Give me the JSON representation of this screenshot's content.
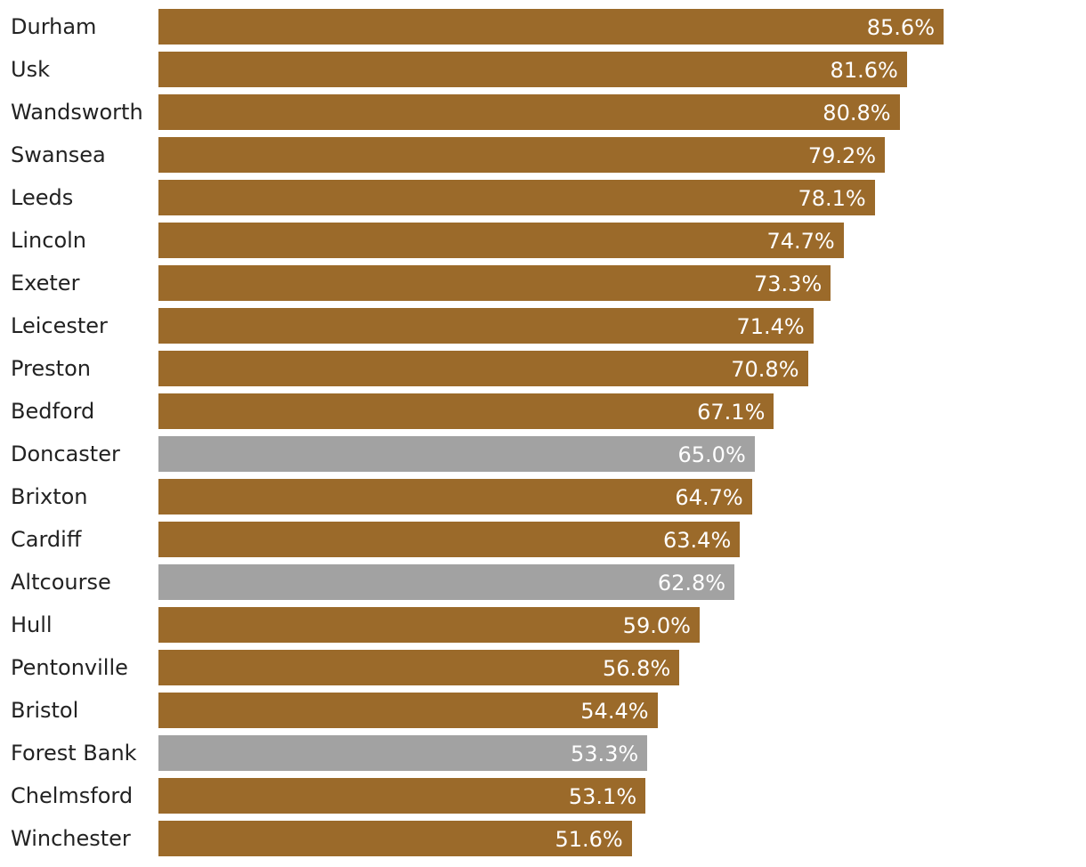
{
  "chart_data": {
    "type": "bar",
    "orientation": "horizontal",
    "categories": [
      "Durham",
      "Usk",
      "Wandsworth",
      "Swansea",
      "Leeds",
      "Lincoln",
      "Exeter",
      "Leicester",
      "Preston",
      "Bedford",
      "Doncaster",
      "Brixton",
      "Cardiff",
      "Altcourse",
      "Hull",
      "Pentonville",
      "Bristol",
      "Forest Bank",
      "Chelmsford",
      "Winchester"
    ],
    "values": [
      85.6,
      81.6,
      80.8,
      79.2,
      78.1,
      74.7,
      73.3,
      71.4,
      70.8,
      67.1,
      65.0,
      64.7,
      63.4,
      62.8,
      59.0,
      56.8,
      54.4,
      53.3,
      53.1,
      51.6
    ],
    "value_labels": [
      "85.6%",
      "81.6%",
      "80.8%",
      "79.2%",
      "78.1%",
      "74.7%",
      "73.3%",
      "71.4%",
      "70.8%",
      "67.1%",
      "65.0%",
      "64.7%",
      "63.4%",
      "62.8%",
      "59.0%",
      "56.8%",
      "54.4%",
      "53.3%",
      "53.1%",
      "51.6%"
    ],
    "highlighted": [
      "Doncaster",
      "Altcourse",
      "Forest Bank"
    ],
    "colors": {
      "default": "#9b6a2a",
      "highlight": "#a2a2a2"
    },
    "grid": false,
    "legend": false
  }
}
